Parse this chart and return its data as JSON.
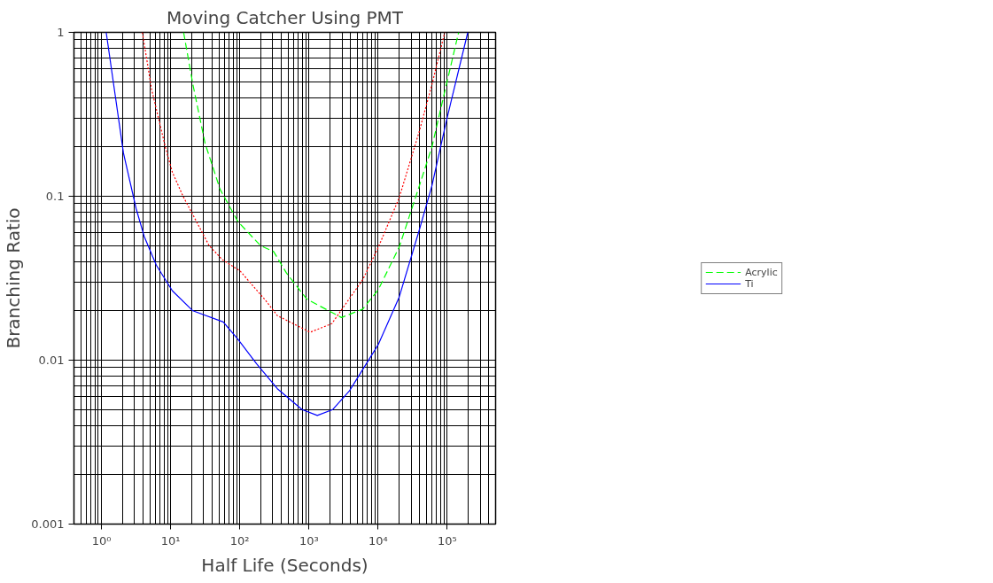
{
  "chart_data": {
    "type": "line",
    "title": "Moving Catcher Using PMT",
    "xlabel": "Half Life (Seconds)",
    "ylabel": "Branching Ratio",
    "log": "xy",
    "grid": true,
    "legend": "right",
    "xlim": [
      0.4,
      500000
    ],
    "ylim": [
      0.001,
      1
    ],
    "xticks": [
      {
        "value": 1,
        "label": "10⁰"
      },
      {
        "value": 10,
        "label": "10¹"
      },
      {
        "value": 100,
        "label": "10²"
      },
      {
        "value": 1000,
        "label": "10³"
      },
      {
        "value": 10000,
        "label": "10⁴"
      },
      {
        "value": 100000,
        "label": "10⁵"
      }
    ],
    "yticks": [
      0.001,
      0.01,
      0.1,
      1
    ],
    "series": [
      {
        "name": "Acrylic",
        "color": "#00ff00",
        "line_style": "dashed",
        "x": [
          15.4,
          21,
          31.5,
          52,
          94,
          199,
          308,
          473,
          930,
          2950,
          6000,
          10100,
          20200,
          39500,
          60000,
          97000,
          146000
        ],
        "values": [
          1,
          0.48,
          0.21,
          0.11,
          0.07,
          0.05,
          0.046,
          0.034,
          0.0236,
          0.0182,
          0.0205,
          0.027,
          0.049,
          0.116,
          0.2,
          0.48,
          1
        ]
      },
      {
        "color": "#ff0000",
        "line_style": "dotted",
        "x": [
          3.9,
          5.3,
          8.5,
          10.6,
          15.1,
          21,
          36,
          56,
          101,
          239,
          349,
          1040,
          2140,
          6000,
          10100,
          20200,
          39500,
          60000,
          92000
        ],
        "values": [
          1,
          0.45,
          0.195,
          0.14,
          0.1,
          0.077,
          0.05,
          0.041,
          0.035,
          0.023,
          0.0187,
          0.0148,
          0.0167,
          0.031,
          0.049,
          0.098,
          0.25,
          0.48,
          1
        ]
      },
      {
        "name": "Ti",
        "color": "#0000ff",
        "line_style": "solid",
        "x": [
          1.17,
          2.08,
          3.17,
          4.14,
          6.2,
          10.6,
          21,
          57.6,
          94,
          175,
          349,
          795,
          1320,
          2210,
          3850,
          10100,
          20200,
          39500,
          60000,
          97000,
          198000
        ],
        "values": [
          1,
          0.183,
          0.084,
          0.057,
          0.038,
          0.0265,
          0.02,
          0.0171,
          0.0134,
          0.0095,
          0.0067,
          0.005,
          0.0046,
          0.005,
          0.0065,
          0.0125,
          0.0243,
          0.0625,
          0.116,
          0.288,
          1
        ]
      }
    ]
  }
}
